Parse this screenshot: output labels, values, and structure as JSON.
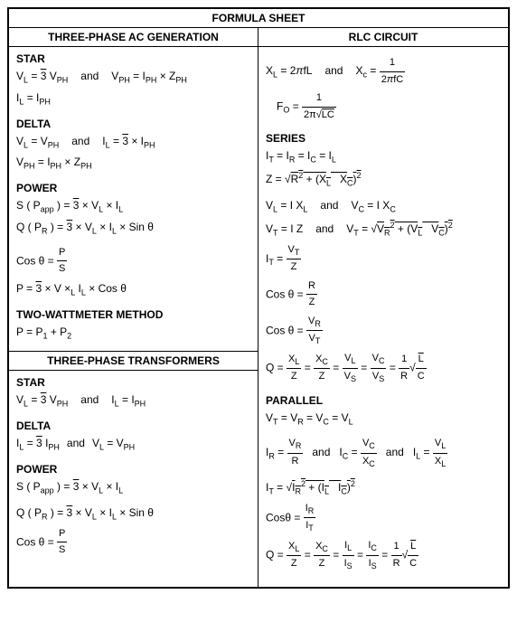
{
  "title": "FORMULA SHEET",
  "left": {
    "section1": {
      "header": "THREE-PHASE AC GENERATION",
      "star": {
        "label": "STAR",
        "f1a": "V<sub>L</sub> = <span class='sqrt'>3</span> V<sub>PH</sub>",
        "f1b": "V<sub>PH</sub> = I<sub>PH</sub> × Z<sub>PH</sub>",
        "f2": "I<sub>L</sub> = I<sub>PH</sub>"
      },
      "delta": {
        "label": "DELTA",
        "f1a": "V<sub>L</sub> = V<sub>PH</sub>",
        "f1b": "I<sub>L</sub> = <span class='sqrt'>3</span> × I<sub>PH</sub>",
        "f2": "V<sub>PH</sub> = I<sub>PH</sub> × Z<sub>PH</sub>"
      },
      "power": {
        "label": "POWER",
        "f1": "S ( P<sub>app</sub> ) = <span class='sqrt'>3</span> × V<sub>L</sub> × I<sub>L</sub>",
        "f2": "Q ( P<sub>R</sub> ) = <span class='sqrt'>3</span> × V<sub>L</sub> × I<sub>L</sub> × Sin θ",
        "f3": "Cos θ = <span class='frac'><span class='num'>P</span><span class='den'>S</span></span>",
        "f4": "P = <span class='sqrt'>3</span> × V ×<sub>L</sub> I<sub>L</sub> × Cos θ"
      },
      "twm": {
        "label": "TWO-WATTMETER METHOD",
        "f1": "P = P<sub>1</sub> + P<sub>2</sub>"
      }
    },
    "section2": {
      "header": "THREE-PHASE TRANSFORMERS",
      "star": {
        "label": "STAR",
        "f1a": "V<sub>L</sub> = <span class='sqrt'>3</span> V<sub>PH</sub>",
        "f1b": "I<sub>L</sub> = I<sub>PH</sub>"
      },
      "delta": {
        "label": "DELTA",
        "f1a": "I<sub>L</sub> = <span class='sqrt'>3</span> I<sub>PH</sub>",
        "f1b": "V<sub>L</sub> = V<sub>PH</sub>"
      },
      "power": {
        "label": "POWER",
        "f1": "S ( P<sub>app</sub> ) = <span class='sqrt'>3</span> × V<sub>L</sub> × I<sub>L</sub>",
        "f2": "Q ( P<sub>R</sub> ) = <span class='sqrt'>3</span> × V<sub>L</sub> × I<sub>L</sub> × Sin θ",
        "f3": "Cos θ = <span class='frac'><span class='num'>P</span><span class='den'>S</span></span>"
      }
    }
  },
  "right": {
    "header": "RLC CIRCUIT",
    "top": {
      "f1a": "X<sub>L</sub> = 2<i>π</i>fL",
      "f1b": "X<sub>c</sub> = <span class='frac'><span class='num'>1</span><span class='den'>2<i>π</i>fC</span></span>",
      "f2": "F<sub>O</sub> = <span class='frac'><span class='num'>1</span><span class='den'>2π√<span class='sqrt'>LC</span></span></span>"
    },
    "series": {
      "label": "SERIES",
      "f1": "I<sub>T</sub> = I<sub>R</sub> = I<sub>C</sub> = I<sub>L</sub>",
      "f2": "Z = √<span class='sqrt'>R<sup>2</sup> + (X<sub>L</sub> &nbsp; X<sub>C</sub>)<sup>2</sup></span>",
      "f3a": "V<sub>L</sub> = I X<sub>L</sub>",
      "f3b": "V<sub>C</sub> = I X<sub>C</sub>",
      "f4a": "V<sub>T</sub> = I Z",
      "f4b": "V<sub>T</sub> = √<span class='sqrt'>V<sub>R</sub><sup>2</sup> + (V<sub>L</sub> &nbsp; V<sub>C</sub>)<sup>2</sup></span>",
      "f5": "I<sub>T</sub> = <span class='frac'><span class='num'>V<sub>T</sub></span><span class='den'>Z</span></span>",
      "f6": "Cos θ = <span class='frac'><span class='num'>R</span><span class='den'>Z</span></span>",
      "f7": "Cos θ = <span class='frac'><span class='num'>V<sub>R</sub></span><span class='den'>V<sub>T</sub></span></span>",
      "f8": "Q = <span class='frac'><span class='num'>X<sub>L</sub></span><span class='den'>Z</span></span> = <span class='frac'><span class='num'>X<sub>C</sub></span><span class='den'>Z</span></span> = <span class='frac'><span class='num'>V<sub>L</sub></span><span class='den'>V<sub>S</sub></span></span> = <span class='frac'><span class='num'>V<sub>C</sub></span><span class='den'>V<sub>S</sub></span></span> = <span class='frac'><span class='num'>1</span><span class='den'>R</span></span>√<span class='frac'><span class='num sqrt'>L</span><span class='den'>C</span></span>"
    },
    "parallel": {
      "label": "PARALLEL",
      "f1": "V<sub>T</sub> = V<sub>R</sub> = V<sub>C</sub> = V<sub>L</sub>",
      "f2a": "I<sub>R</sub> = <span class='frac'><span class='num'>V<sub>R</sub></span><span class='den'>R</span></span>",
      "f2b": "I<sub>C</sub> = <span class='frac'><span class='num'>V<sub>C</sub></span><span class='den'>X<sub>C</sub></span></span>",
      "f2c": "I<sub>L</sub> = <span class='frac'><span class='num'>V<sub>L</sub></span><span class='den'>X<sub>L</sub></span></span>",
      "f3": "I<sub>T</sub> = √<span class='sqrt'>I<sub>R</sub><sup>2</sup> + (I<sub>L</sub> &nbsp; I<sub>C</sub>)<sup>2</sup></span>",
      "f4": "Cosθ = <span class='frac'><span class='num'>I<sub>R</sub></span><span class='den'>I<sub>T</sub></span></span>",
      "f5": "Q = <span class='frac'><span class='num'>X<sub>L</sub></span><span class='den'>Z</span></span> = <span class='frac'><span class='num'>X<sub>C</sub></span><span class='den'>Z</span></span> = <span class='frac'><span class='num'>I<sub>L</sub></span><span class='den'>I<sub>S</sub></span></span> = <span class='frac'><span class='num'>I<sub>C</sub></span><span class='den'>I<sub>S</sub></span></span> = <span class='frac'><span class='num'>1</span><span class='den'>R</span></span>√<span class='frac'><span class='num sqrt'>L</span><span class='den'>C</span></span>"
    }
  },
  "and": "and"
}
